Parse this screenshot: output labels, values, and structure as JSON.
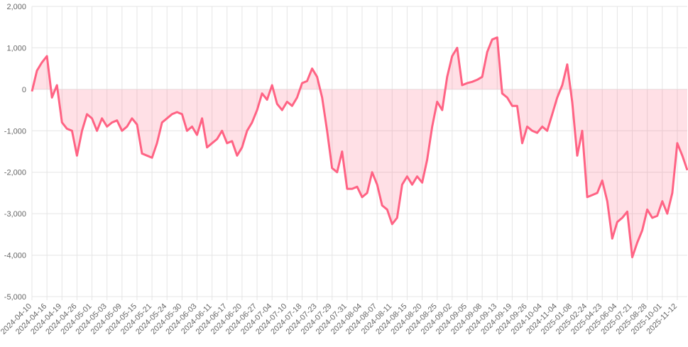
{
  "chart_data": {
    "type": "line",
    "categories": [
      "2024-04-10",
      null,
      null,
      "2024-04-16",
      null,
      null,
      "2024-04-19",
      null,
      null,
      "2024-04-26",
      null,
      null,
      "2024-05-01",
      null,
      null,
      "2024-05-03",
      null,
      null,
      "2024-05-09",
      null,
      null,
      "2024-05-15",
      null,
      null,
      "2024-05-21",
      null,
      null,
      "2024-05-24",
      null,
      null,
      "2024-05-30",
      null,
      null,
      "2024-06-03",
      null,
      null,
      "2024-06-11",
      null,
      null,
      "2024-06-17",
      null,
      null,
      "2024-06-20",
      null,
      null,
      "2024-06-27",
      null,
      null,
      "2024-07-04",
      null,
      null,
      "2024-07-10",
      null,
      null,
      "2024-07-18",
      null,
      null,
      "2024-07-23",
      null,
      null,
      "2024-07-29",
      null,
      null,
      "2024-07-31",
      null,
      null,
      "2024-08-04",
      null,
      null,
      "2024-08-07",
      null,
      null,
      "2024-08-11",
      null,
      null,
      "2024-08-15",
      null,
      null,
      "2024-08-20",
      null,
      null,
      "2024-08-25",
      null,
      null,
      "2024-09-02",
      null,
      null,
      "2024-09-05",
      null,
      null,
      "2024-09-08",
      null,
      null,
      "2024-09-13",
      null,
      null,
      "2024-09-19",
      null,
      null,
      "2024-09-26",
      null,
      null,
      "2024-10-04",
      null,
      null,
      "2024-11-04",
      null,
      null,
      "2025-01-08",
      null,
      null,
      "2025-02-24",
      null,
      null,
      "2025-04-23",
      null,
      null,
      "2025-06-04",
      null,
      null,
      "2025-07-21",
      null,
      null,
      "2025-08-28",
      null,
      null,
      "2025-10-01",
      null,
      null,
      "2025-11-12",
      null,
      null
    ],
    "series": [
      {
        "color": "#ff6384",
        "fill": "rgba(255,99,132,0.2)",
        "values": [
          -50,
          450,
          650,
          800,
          -200,
          100,
          -800,
          -950,
          -1000,
          -1600,
          -1000,
          -600,
          -700,
          -1000,
          -700,
          -900,
          -800,
          -750,
          -1000,
          -900,
          -700,
          -850,
          -1550,
          -1600,
          -1650,
          -1300,
          -800,
          -700,
          -600,
          -550,
          -600,
          -1000,
          -900,
          -1100,
          -700,
          -1400,
          -1300,
          -1200,
          -1000,
          -1300,
          -1250,
          -1600,
          -1400,
          -1000,
          -800,
          -500,
          -100,
          -250,
          100,
          -350,
          -500,
          -300,
          -400,
          -200,
          150,
          200,
          500,
          300,
          -200,
          -1000,
          -1900,
          -2000,
          -1500,
          -2400,
          -2400,
          -2350,
          -2600,
          -2500,
          -2000,
          -2300,
          -2800,
          -2900,
          -3250,
          -3100,
          -2300,
          -2100,
          -2300,
          -2100,
          -2250,
          -1700,
          -900,
          -300,
          -500,
          300,
          800,
          1000,
          100,
          150,
          180,
          230,
          300,
          900,
          1200,
          1250,
          -100,
          -200,
          -400,
          -400,
          -1300,
          -900,
          -1000,
          -1050,
          -900,
          -1000,
          -600,
          -200,
          100,
          600,
          -300,
          -1600,
          -1000,
          -2600,
          -2550,
          -2500,
          -2200,
          -2700,
          -3600,
          -3200,
          -3100,
          -2950,
          -4050,
          -3700,
          -3400,
          -2900,
          -3100,
          -3050,
          -2700,
          -3000,
          -2500,
          -1300,
          -1600,
          -1950
        ]
      }
    ],
    "ylim": [
      -5000,
      2000
    ],
    "yticks": [
      {
        "value": -5000,
        "label": "-5,000"
      },
      {
        "value": -4000,
        "label": "-4,000"
      },
      {
        "value": -3000,
        "label": "-3,000"
      },
      {
        "value": -2000,
        "label": "-2,000"
      },
      {
        "value": -1000,
        "label": "-1,000"
      },
      0,
      {
        "value": 1000,
        "label": "1,000"
      },
      {
        "value": 2000,
        "label": "2,000"
      }
    ],
    "grid": true
  }
}
